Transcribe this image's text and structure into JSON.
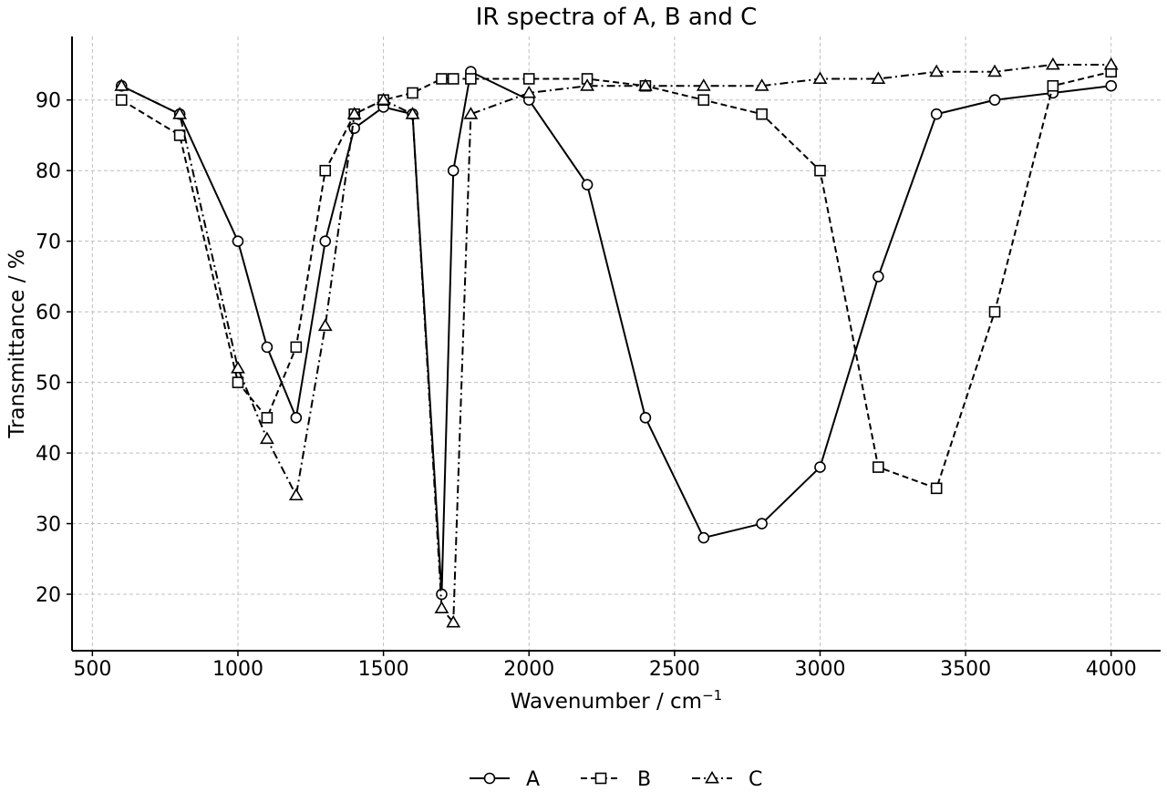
{
  "chart_data": {
    "type": "line",
    "title": "IR spectra of A, B and C",
    "xlabel_main": "Wavenumber / cm",
    "xlabel_sup": "−1",
    "ylabel": "Transmittance / %",
    "xlim": [
      430,
      4170
    ],
    "ylim": [
      12,
      99
    ],
    "xticks": [
      500,
      1000,
      1500,
      2000,
      2500,
      3000,
      3500,
      4000
    ],
    "yticks": [
      20,
      30,
      40,
      50,
      60,
      70,
      80,
      90
    ],
    "grid": true,
    "legend_position": "bottom-center",
    "series": [
      {
        "name": "A",
        "marker": "circle",
        "linestyle": "solid",
        "x": [
          600,
          800,
          1000,
          1100,
          1200,
          1300,
          1400,
          1500,
          1600,
          1700,
          1740,
          1800,
          2000,
          2200,
          2400,
          2600,
          2800,
          3000,
          3200,
          3400,
          3600,
          3800,
          4000
        ],
        "y": [
          92,
          88,
          70,
          55,
          45,
          70,
          86,
          89,
          88,
          20,
          80,
          94,
          90,
          78,
          45,
          28,
          30,
          38,
          65,
          88,
          90,
          91,
          92
        ]
      },
      {
        "name": "B",
        "marker": "square",
        "linestyle": "dashed",
        "x": [
          600,
          800,
          1000,
          1100,
          1200,
          1300,
          1400,
          1500,
          1600,
          1700,
          1740,
          1800,
          2000,
          2200,
          2400,
          2600,
          2800,
          3000,
          3200,
          3400,
          3600,
          3800,
          4000
        ],
        "y": [
          90,
          85,
          50,
          45,
          55,
          80,
          88,
          90,
          91,
          93,
          93,
          93,
          93,
          93,
          92,
          90,
          88,
          80,
          38,
          35,
          60,
          92,
          94
        ]
      },
      {
        "name": "C",
        "marker": "triangle",
        "linestyle": "dashdot",
        "x": [
          600,
          800,
          1000,
          1100,
          1200,
          1300,
          1400,
          1500,
          1600,
          1700,
          1740,
          1800,
          2000,
          2200,
          2400,
          2600,
          2800,
          3000,
          3200,
          3400,
          3600,
          3800,
          4000
        ],
        "y": [
          92,
          88,
          52,
          42,
          34,
          58,
          88,
          90,
          88,
          18,
          16,
          88,
          91,
          92,
          92,
          92,
          92,
          93,
          93,
          94,
          94,
          95,
          95
        ]
      }
    ]
  },
  "colors": {
    "line": "#000000",
    "grid": "#bfbfbf",
    "background": "#ffffff"
  }
}
